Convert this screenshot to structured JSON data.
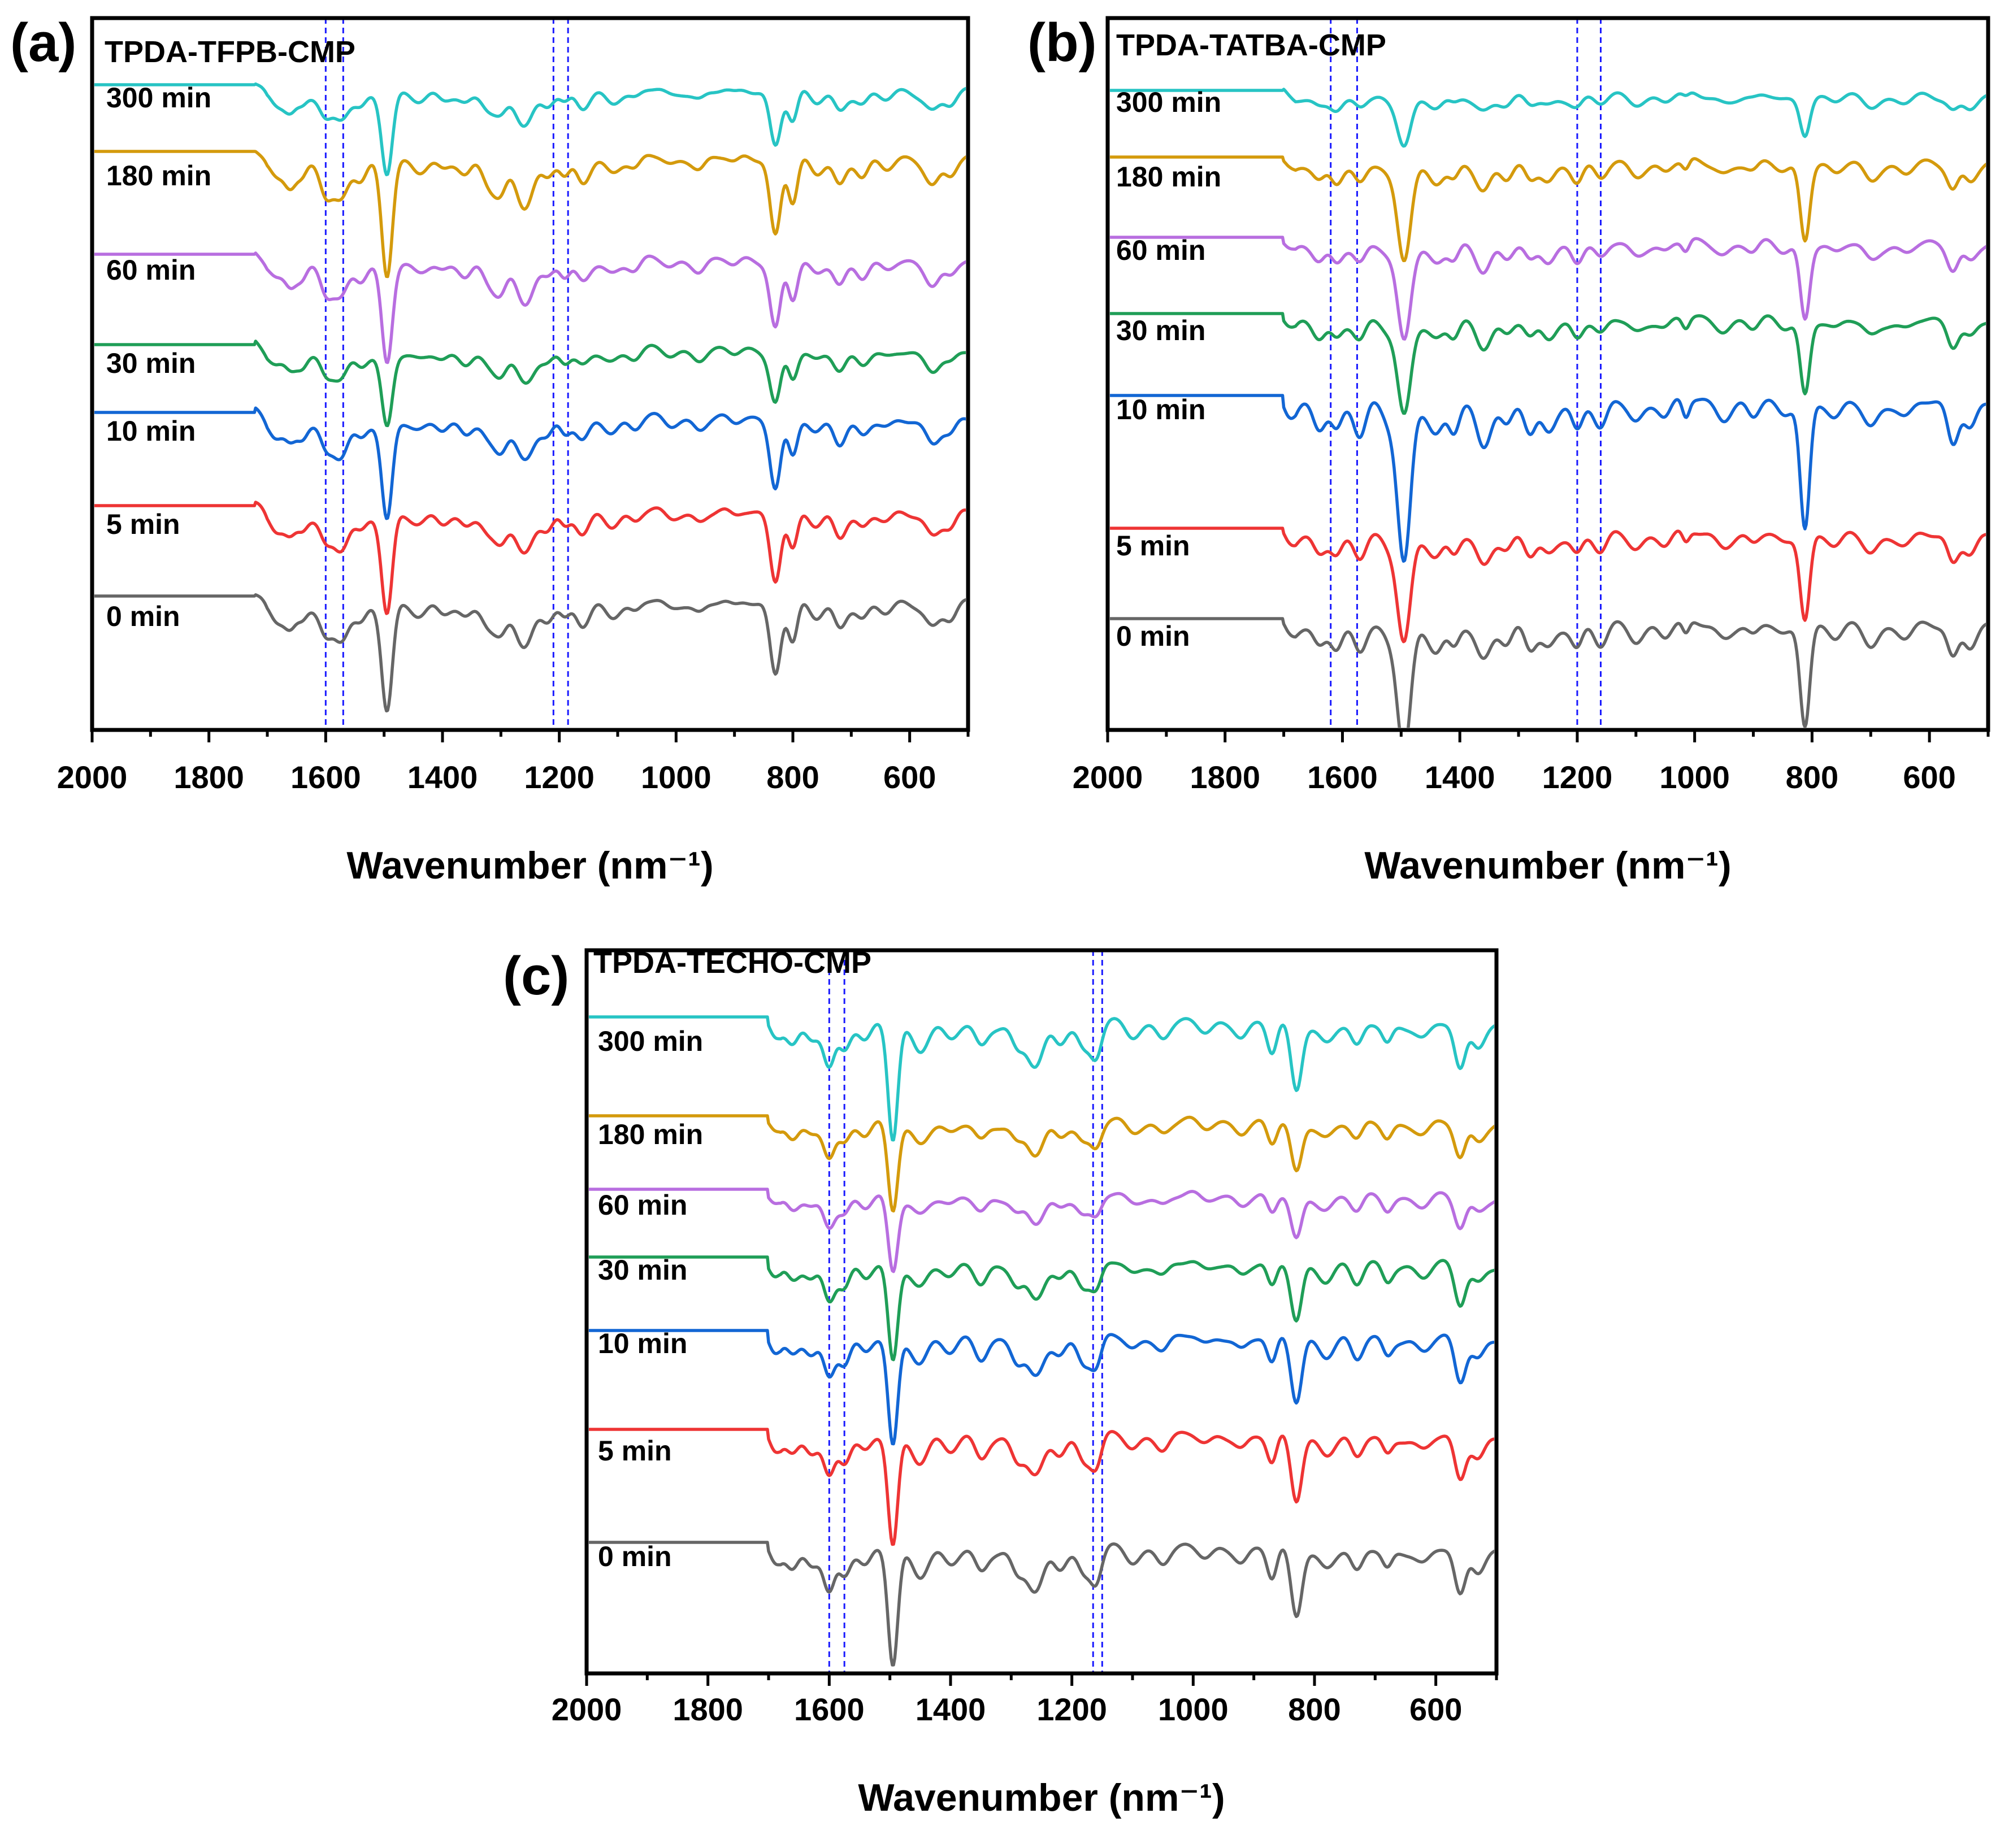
{
  "figure": {
    "x_axis_title": "Wavenumber (nm⁻¹)",
    "tick_values": [
      2000,
      1800,
      1600,
      1400,
      1200,
      1000,
      800,
      600
    ],
    "colors": {
      "300 min": "#27c4c4",
      "180 min": "#d49a0c",
      "60 min": "#b86ee0",
      "30 min": "#1f9e57",
      "10 min": "#1266d4",
      "5 min": "#ee3434",
      "0 min": "#666666",
      "reference_line": "#1a1aff"
    }
  },
  "chart_data": [
    {
      "panel": "(a)",
      "type": "line",
      "title": "TPDA-TFPB-CMP",
      "xlabel": "Wavenumber (nm⁻¹)",
      "ylabel": "",
      "xlim": [
        2000,
        500
      ],
      "x_reversed": true,
      "reference_lines_x": [
        1600,
        1570,
        1210,
        1185
      ],
      "series": [
        {
          "name": "300 min",
          "flat_until": 1720,
          "depth_scale": 0.75
        },
        {
          "name": "180 min",
          "flat_until": 1720,
          "depth_scale": 1.1
        },
        {
          "name": "60 min",
          "flat_until": 1720,
          "depth_scale": 0.95
        },
        {
          "name": "30 min",
          "flat_until": 1720,
          "depth_scale": 0.7
        },
        {
          "name": "10 min",
          "flat_until": 1720,
          "depth_scale": 0.95
        },
        {
          "name": "5 min",
          "flat_until": 1720,
          "depth_scale": 0.95
        },
        {
          "name": "0 min",
          "flat_until": 1720,
          "depth_scale": 1.0
        }
      ]
    },
    {
      "panel": "(b)",
      "type": "line",
      "title": "TPDA-TATBA-CMP",
      "xlabel": "Wavenumber (nm⁻¹)",
      "ylabel": "",
      "xlim": [
        2000,
        500
      ],
      "x_reversed": true,
      "reference_lines_x": [
        1620,
        1575,
        1200,
        1160
      ],
      "series": [
        {
          "name": "300 min",
          "flat_until": 1700,
          "depth_scale": 0.35
        },
        {
          "name": "180 min",
          "flat_until": 1700,
          "depth_scale": 0.75
        },
        {
          "name": "60 min",
          "flat_until": 1700,
          "depth_scale": 0.75
        },
        {
          "name": "30 min",
          "flat_until": 1700,
          "depth_scale": 0.75
        },
        {
          "name": "10 min",
          "flat_until": 1700,
          "depth_scale": 1.3
        },
        {
          "name": "5 min",
          "flat_until": 1700,
          "depth_scale": 0.85
        },
        {
          "name": "0 min",
          "flat_until": 1700,
          "depth_scale": 1.0
        }
      ]
    },
    {
      "panel": "(c)",
      "type": "line",
      "title": "TPDA-TECHO-CMP",
      "xlabel": "Wavenumber (nm⁻¹)",
      "ylabel": "",
      "xlim": [
        2000,
        500
      ],
      "x_reversed": true,
      "reference_lines_x": [
        1600,
        1575,
        1165,
        1150
      ],
      "series": [
        {
          "name": "300 min",
          "flat_until": 1700,
          "depth_scale": 1.0
        },
        {
          "name": "180 min",
          "flat_until": 1700,
          "depth_scale": 0.75
        },
        {
          "name": "60 min",
          "flat_until": 1700,
          "depth_scale": 0.65
        },
        {
          "name": "30 min",
          "flat_until": 1700,
          "depth_scale": 0.85
        },
        {
          "name": "10 min",
          "flat_until": 1700,
          "depth_scale": 0.95
        },
        {
          "name": "5 min",
          "flat_until": 1700,
          "depth_scale": 0.95
        },
        {
          "name": "0 min",
          "flat_until": 1700,
          "depth_scale": 1.0
        }
      ]
    }
  ]
}
